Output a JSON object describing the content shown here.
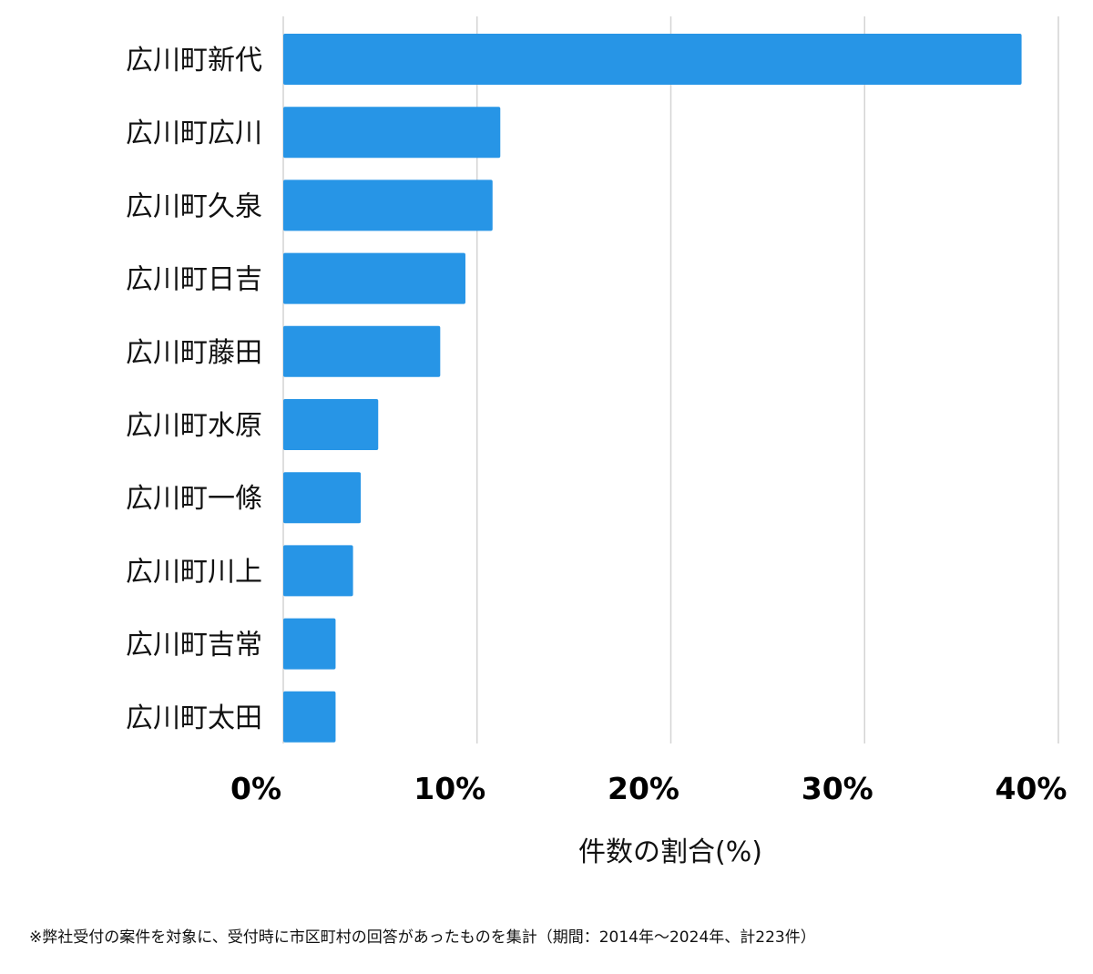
{
  "chart_data": {
    "type": "bar",
    "orientation": "horizontal",
    "categories": [
      "広川町新代",
      "広川町広川",
      "広川町久泉",
      "広川町日吉",
      "広川町藤田",
      "広川町水原",
      "広川町一條",
      "広川町川上",
      "広川町吉常",
      "広川町太田"
    ],
    "values": [
      38.1,
      11.2,
      10.8,
      9.4,
      8.1,
      4.9,
      4.0,
      3.6,
      2.7,
      2.7
    ],
    "xlim": [
      0,
      40
    ],
    "xticks": [
      "0%",
      "10%",
      "20%",
      "30%",
      "40%"
    ],
    "xlabel": "件数の割合(%)",
    "grid": true,
    "bar_color": "#2795e6"
  },
  "footnote": "※弊社受付の案件を対象に、受付時に市区町村の回答があったものを集計（期間：2014年～2024年、計223件）"
}
